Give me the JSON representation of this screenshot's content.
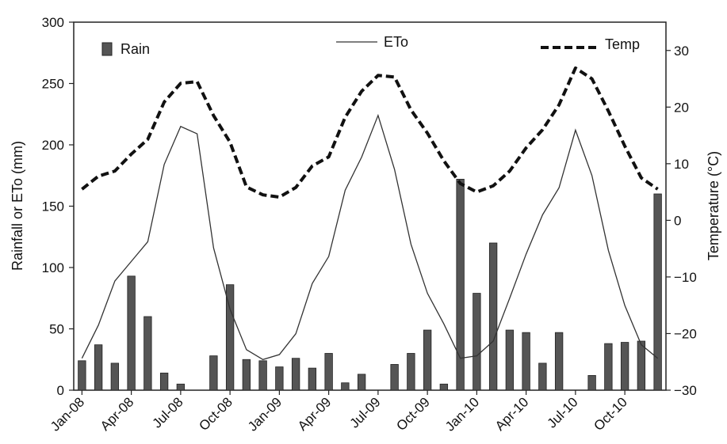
{
  "chart_data": {
    "type": "bar",
    "categories": [
      "Jan-08",
      "Feb-08",
      "Mar-08",
      "Apr-08",
      "May-08",
      "Jun-08",
      "Jul-08",
      "Aug-08",
      "Sep-08",
      "Oct-08",
      "Nov-08",
      "Dec-08",
      "Jan-09",
      "Feb-09",
      "Mar-09",
      "Apr-09",
      "May-09",
      "Jun-09",
      "Jul-09",
      "Aug-09",
      "Sep-09",
      "Oct-09",
      "Nov-09",
      "Dec-09",
      "Jan-10",
      "Feb-10",
      "Mar-10",
      "Apr-10",
      "May-10",
      "Jun-10",
      "Jul-10",
      "Aug-10",
      "Sep-10",
      "Oct-10",
      "Nov-10",
      "Dec-10"
    ],
    "xtick_labels": [
      "Jan-08",
      "Apr-08",
      "Jul-08",
      "Oct-08",
      "Jan-09",
      "Apr-09",
      "Jul-09",
      "Oct-09",
      "Jan-10",
      "Apr-10",
      "Jul-10",
      "Oct-10"
    ],
    "xtick_indices": [
      0,
      3,
      6,
      9,
      12,
      15,
      18,
      21,
      24,
      27,
      30,
      33
    ],
    "ylabel": "Rainfall or ETo (mm)",
    "ylim": [
      0,
      300
    ],
    "yticks": [
      0,
      50,
      100,
      150,
      200,
      250,
      300
    ],
    "y2label": "Temperature (°C)",
    "y2lim": [
      -30,
      35
    ],
    "y2ticks": [
      -30,
      -20,
      -10,
      0,
      10,
      20,
      30
    ],
    "y2tick_labels": [
      "−30",
      "−20",
      "−10",
      "0",
      "10",
      "20",
      "30"
    ],
    "series": [
      {
        "name": "Rain",
        "type": "bar",
        "axis": "left",
        "color": "#555555",
        "values": [
          24,
          37,
          22,
          93,
          60,
          14,
          5,
          0,
          28,
          86,
          25,
          24,
          19,
          26,
          18,
          30,
          6,
          13,
          0,
          21,
          30,
          49,
          5,
          172,
          79,
          120,
          49,
          47,
          22,
          47,
          0,
          12,
          38,
          39,
          40,
          160
        ]
      },
      {
        "name": "ETo",
        "type": "line",
        "axis": "left",
        "color": "#333333",
        "style": "solid",
        "values": [
          26,
          53,
          89,
          105,
          121,
          184,
          215,
          209,
          116,
          66,
          33,
          25,
          29,
          46,
          87,
          109,
          163,
          190,
          224,
          180,
          119,
          79,
          54,
          26,
          28,
          40,
          75,
          111,
          143,
          165,
          212,
          175,
          114,
          69,
          37,
          26
        ]
      },
      {
        "name": "Temp",
        "type": "line",
        "axis": "right",
        "color": "#111111",
        "style": "dashed",
        "values": [
          5.5,
          7.8,
          8.7,
          11.7,
          14.3,
          20.9,
          24.2,
          24.5,
          18.5,
          13.8,
          5.9,
          4.5,
          4.1,
          5.8,
          9.6,
          11.2,
          18.2,
          22.8,
          25.6,
          25.3,
          19.5,
          15.4,
          10.5,
          6.5,
          5.0,
          6.1,
          8.7,
          12.8,
          16.0,
          20.4,
          26.9,
          25.0,
          19.3,
          13.1,
          7.5,
          5.5
        ]
      }
    ],
    "legend": [
      {
        "label": "Rain",
        "symbol": "bar"
      },
      {
        "label": "ETo",
        "symbol": "solid-line"
      },
      {
        "label": "Temp",
        "symbol": "dashed-line"
      }
    ],
    "grid": false
  }
}
